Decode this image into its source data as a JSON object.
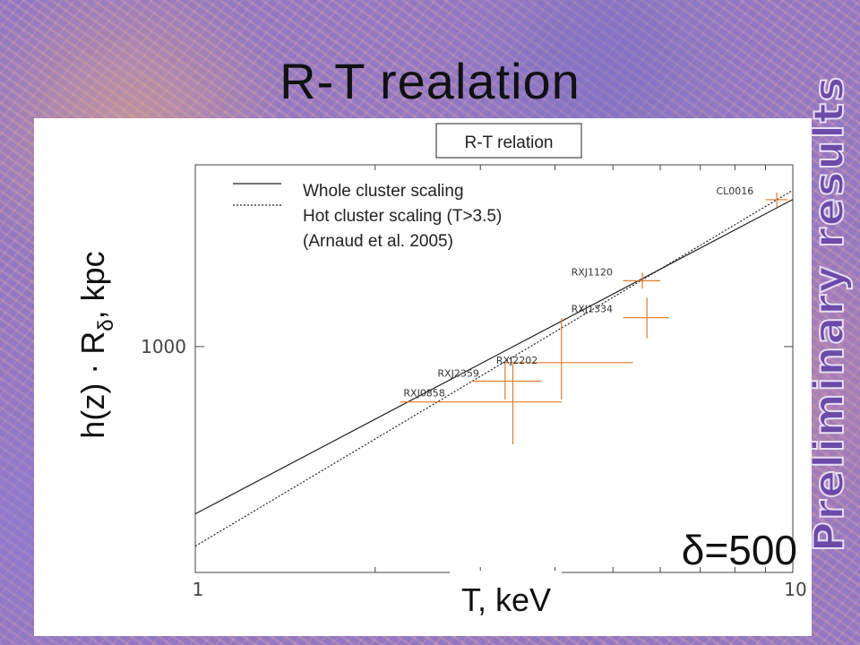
{
  "slide": {
    "title": "R-T realation",
    "watermark": "Preliminary results"
  },
  "chart_data": {
    "type": "scatter",
    "title": "R-T relation",
    "xlabel": "T, keV",
    "ylabel": "h(z) · Rδ, kpc",
    "ylabel_parts": {
      "main": "h(z) · R",
      "subscript": "δ",
      "suffix": ", kpc"
    },
    "x_scale": "log",
    "y_scale": "log",
    "xlim": [
      1,
      10
    ],
    "ylim": [
      580,
      1550
    ],
    "x_ticks": [
      1,
      10
    ],
    "x_tick_labels": [
      "1",
      "10"
    ],
    "y_ticks": [
      1000
    ],
    "y_tick_labels": [
      "1000"
    ],
    "annotation": "δ=500",
    "legend": {
      "placement": "top-left",
      "entries": [
        {
          "label": "Whole cluster scaling",
          "style": "solid"
        },
        {
          "label": "Hot cluster scaling (T>3.5)",
          "style": "dotted"
        },
        {
          "label": "(Arnaud et al. 2005)",
          "style": "none"
        }
      ]
    },
    "lines": [
      {
        "label": "Whole cluster scaling",
        "style": "solid",
        "x": [
          1,
          10
        ],
        "y": [
          668,
          1426
        ]
      },
      {
        "label": "Hot cluster scaling (T>3.5)",
        "style": "dotted",
        "x": [
          1,
          10
        ],
        "y": [
          618,
          1458
        ]
      }
    ],
    "points": [
      {
        "name": "CL0016",
        "x": 9.4,
        "y": 1425,
        "xerr": [
          9.0,
          9.8
        ],
        "yerr": [
          1400,
          1450
        ]
      },
      {
        "name": "RXJ1120",
        "x": 5.6,
        "y": 1172,
        "xerr": [
          5.2,
          6.0
        ],
        "yerr": [
          1150,
          1195
        ]
      },
      {
        "name": "RXJ1334",
        "x": 5.7,
        "y": 1072,
        "xerr": [
          5.2,
          6.2
        ],
        "yerr": [
          1020,
          1125
        ]
      },
      {
        "name": "RXJ2359",
        "x": 3.3,
        "y": 920,
        "xerr": [
          2.9,
          3.8
        ],
        "yerr": [
          880,
          960
        ]
      },
      {
        "name": "RXJ2202",
        "x": 4.1,
        "y": 962,
        "xerr": [
          3.3,
          5.4
        ],
        "yerr": [
          880,
          1070
        ]
      },
      {
        "name": "RXJ0858",
        "x": 3.4,
        "y": 875,
        "xerr": [
          2.2,
          4.1
        ],
        "yerr": [
          790,
          960
        ]
      }
    ],
    "point_color": "#e07c2a"
  }
}
